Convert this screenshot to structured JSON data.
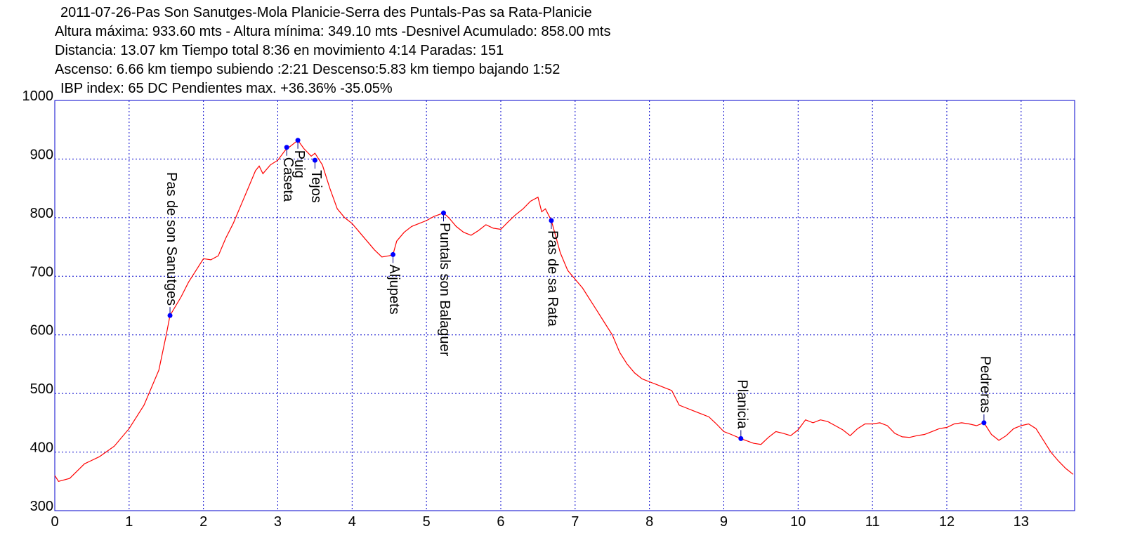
{
  "chart_data": {
    "type": "line",
    "title_lines": [
      "2011-07-26-Pas Son Sanutges-Mola Planicie-Serra des Puntals-Pas sa Rata-Planicie",
      "Altura máxima: 933.60 mts - Altura mínima: 349.10 mts -Desnivel Acumulado: 858.00 mts",
      "Distancia: 13.07 km  Tiempo total 8:36  en movimiento 4:14 Paradas: 151",
      "Ascenso: 6.66 km  tiempo subiendo :2:21  Descenso:5.83 km tiempo bajando 1:52",
      "IBP index: 65 DC  Pendientes max. +36.36%  -35.05%"
    ],
    "xlim": [
      0,
      13.72
    ],
    "ylim": [
      300,
      1000
    ],
    "xticks": [
      0,
      1,
      2,
      3,
      4,
      5,
      6,
      7,
      8,
      9,
      10,
      11,
      12,
      13
    ],
    "yticks": [
      300,
      400,
      500,
      600,
      700,
      800,
      900,
      1000
    ],
    "grid": true,
    "grid_color": "#0000cc",
    "series": [
      {
        "name": "Altura",
        "color": "#ff0000",
        "x": [
          0,
          0.05,
          0.2,
          0.4,
          0.6,
          0.8,
          1.0,
          1.2,
          1.4,
          1.5,
          1.55,
          1.7,
          1.8,
          1.9,
          2.0,
          2.1,
          2.2,
          2.3,
          2.4,
          2.5,
          2.6,
          2.7,
          2.75,
          2.8,
          2.9,
          3.0,
          3.1,
          3.2,
          3.27,
          3.35,
          3.45,
          3.5,
          3.6,
          3.7,
          3.8,
          3.9,
          4.0,
          4.1,
          4.2,
          4.3,
          4.4,
          4.5,
          4.55,
          4.6,
          4.7,
          4.8,
          4.9,
          5.0,
          5.1,
          5.23,
          5.3,
          5.4,
          5.5,
          5.6,
          5.7,
          5.8,
          5.9,
          6.0,
          6.1,
          6.2,
          6.3,
          6.4,
          6.5,
          6.55,
          6.6,
          6.68,
          6.8,
          6.9,
          7.0,
          7.1,
          7.2,
          7.3,
          7.4,
          7.5,
          7.6,
          7.7,
          7.8,
          7.9,
          8.0,
          8.1,
          8.2,
          8.3,
          8.4,
          8.5,
          8.6,
          8.7,
          8.8,
          8.9,
          9.0,
          9.1,
          9.23,
          9.4,
          9.5,
          9.6,
          9.7,
          9.8,
          9.9,
          10.0,
          10.1,
          10.2,
          10.3,
          10.4,
          10.5,
          10.6,
          10.7,
          10.8,
          10.9,
          11.0,
          11.1,
          11.2,
          11.3,
          11.4,
          11.5,
          11.6,
          11.7,
          11.8,
          11.9,
          12.0,
          12.1,
          12.2,
          12.3,
          12.4,
          12.5,
          12.6,
          12.7,
          12.8,
          12.9,
          13.0,
          13.1,
          13.2,
          13.3,
          13.4,
          13.5,
          13.6,
          13.7
        ],
        "values": [
          360,
          350,
          355,
          380,
          392,
          410,
          440,
          480,
          540,
          600,
          633,
          665,
          690,
          710,
          730,
          728,
          735,
          765,
          790,
          820,
          850,
          880,
          888,
          875,
          890,
          898,
          915,
          925,
          932,
          918,
          905,
          910,
          890,
          850,
          815,
          800,
          790,
          775,
          760,
          745,
          733,
          735,
          737,
          760,
          775,
          785,
          790,
          795,
          802,
          808,
          800,
          785,
          775,
          770,
          778,
          788,
          782,
          780,
          793,
          805,
          815,
          828,
          835,
          810,
          815,
          795,
          740,
          710,
          695,
          680,
          660,
          640,
          620,
          600,
          570,
          550,
          535,
          525,
          520,
          515,
          510,
          505,
          480,
          475,
          470,
          465,
          460,
          448,
          435,
          430,
          423,
          415,
          413,
          425,
          435,
          432,
          428,
          438,
          455,
          450,
          455,
          452,
          445,
          438,
          428,
          440,
          448,
          448,
          450,
          445,
          432,
          426,
          425,
          428,
          430,
          435,
          440,
          442,
          448,
          450,
          448,
          445,
          450,
          430,
          420,
          428,
          440,
          445,
          448,
          440,
          420,
          400,
          385,
          372,
          362
        ]
      }
    ],
    "annotations": [
      {
        "text": "Pas de son Sanutges",
        "x": 1.55,
        "y": 633,
        "side": "above"
      },
      {
        "text": "Caseta",
        "x": 3.12,
        "y": 920,
        "side": "below"
      },
      {
        "text": "Puig",
        "x": 3.27,
        "y": 932,
        "side": "below"
      },
      {
        "text": "Tejos",
        "x": 3.5,
        "y": 898,
        "side": "below"
      },
      {
        "text": "Aljupets",
        "x": 4.55,
        "y": 737,
        "side": "below"
      },
      {
        "text": "Puntals son Balaguer",
        "x": 5.23,
        "y": 808,
        "side": "below"
      },
      {
        "text": "Pas de sa Rata",
        "x": 6.68,
        "y": 795,
        "side": "below"
      },
      {
        "text": "Planicia",
        "x": 9.23,
        "y": 423,
        "side": "above"
      },
      {
        "text": "Pedreras",
        "x": 12.5,
        "y": 450,
        "side": "above"
      }
    ]
  }
}
